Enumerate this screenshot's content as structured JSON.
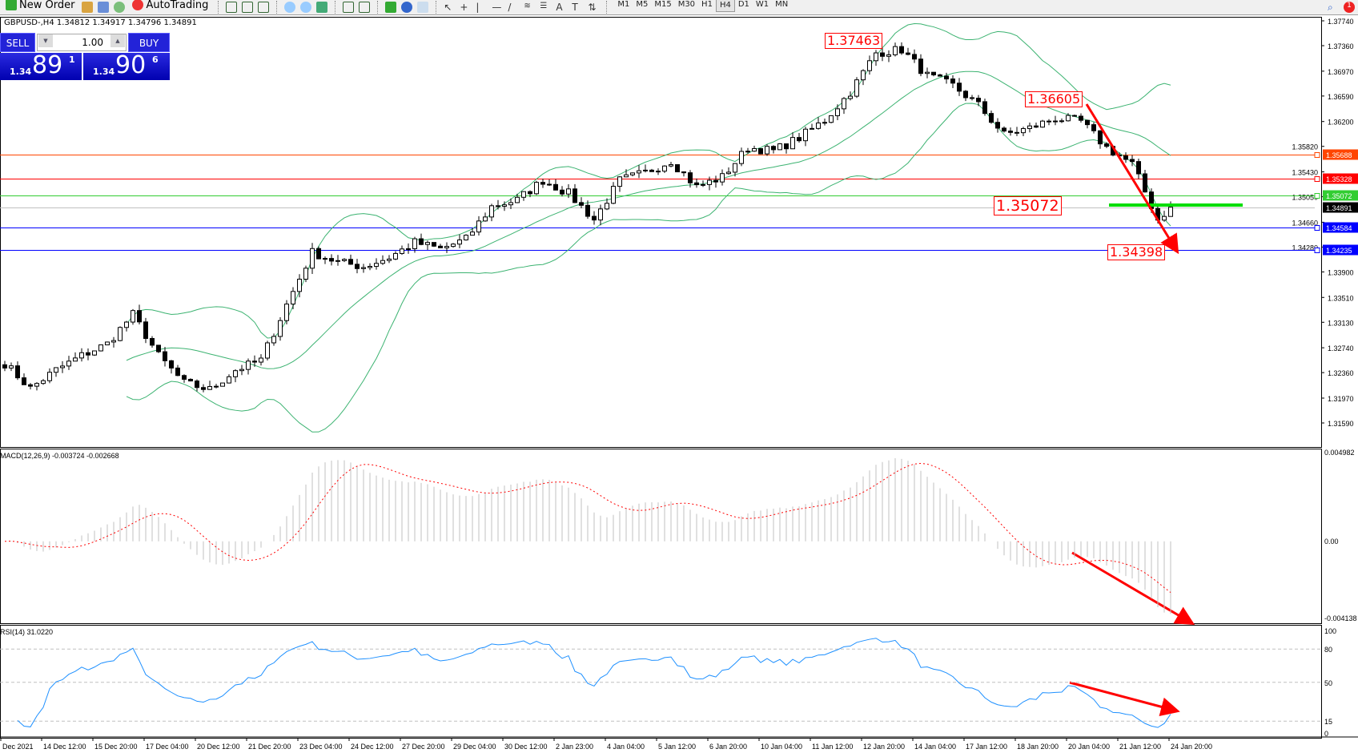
{
  "toolbar": {
    "new_order": "New Order",
    "autotrading": "AutoTrading",
    "timeframes": [
      "M1",
      "M5",
      "M15",
      "M30",
      "H1",
      "H4",
      "D1",
      "W1",
      "MN"
    ],
    "active_timeframe": "H4",
    "notification_count": "1"
  },
  "header": {
    "text": "GBPUSD-,H4  1.34812 1.34917 1.34796 1.34891"
  },
  "trade_panel": {
    "sell": "SELL",
    "buy": "BUY",
    "lot": "1.00",
    "sell_prefix": "1.34",
    "sell_big": "89",
    "sell_sup": "1",
    "buy_prefix": "1.34",
    "buy_big": "90",
    "buy_sup": "6"
  },
  "colors": {
    "bull": "#ffffff",
    "bear": "#000000",
    "bands": "#3cb371",
    "macd_hist": "#c0c0c0",
    "macd_signal": "#ff0000",
    "rsi": "#1e90ff",
    "annotation": "#ff0000"
  },
  "chart_data": {
    "type": "candlestick",
    "symbol": "GBPUSD-",
    "timeframe": "H4",
    "ylim": [
      1.3159,
      1.3774
    ],
    "y_ticks": [
      "1.37740",
      "1.37360",
      "1.36970",
      "1.36590",
      "1.36200",
      "1.35820",
      "1.35430",
      "1.35050",
      "1.34660",
      "1.34280",
      "1.33900",
      "1.33510",
      "1.33130",
      "1.32740",
      "1.32360",
      "1.31970",
      "1.31590"
    ],
    "x_ticks": [
      "Dec 2021",
      "14 Dec 12:00",
      "15 Dec 20:00",
      "17 Dec 04:00",
      "20 Dec 12:00",
      "21 Dec 20:00",
      "23 Dec 04:00",
      "24 Dec 12:00",
      "27 Dec 20:00",
      "29 Dec 04:00",
      "30 Dec 12:00",
      "2 Jan 23:00",
      "4 Jan 04:00",
      "5 Jan 12:00",
      "6 Jan 20:00",
      "10 Jan 04:00",
      "11 Jan 12:00",
      "12 Jan 20:00",
      "14 Jan 04:00",
      "17 Jan 12:00",
      "18 Jan 20:00",
      "20 Jan 04:00",
      "21 Jan 12:00",
      "24 Jan 20:00"
    ],
    "bars_per_tick": 8,
    "close_every_4_bars": [
      1.325,
      1.3212,
      1.324,
      1.3262,
      1.328,
      1.3325,
      1.3262,
      1.322,
      1.321,
      1.324,
      1.3255,
      1.334,
      1.342,
      1.3405,
      1.3398,
      1.3412,
      1.3435,
      1.3425,
      1.344,
      1.349,
      1.35,
      1.353,
      1.351,
      1.347,
      1.353,
      1.3542,
      1.356,
      1.352,
      1.3535,
      1.358,
      1.3575,
      1.3595,
      1.3622,
      1.3665,
      1.3725,
      1.373,
      1.369,
      1.3675,
      1.3645,
      1.36,
      1.361,
      1.3625,
      1.362,
      1.358,
      1.3555,
      1.347,
      1.3489
    ],
    "levels": [
      {
        "price": "1.35688",
        "color": "#ff4500"
      },
      {
        "price": "1.35328",
        "color": "#ff0000"
      },
      {
        "price": "1.35072",
        "color": "#32cd32"
      },
      {
        "price": "1.34891",
        "color": "#000000",
        "line": "#c0c0c0"
      },
      {
        "price": "1.34584",
        "color": "#0000ff"
      },
      {
        "price": "1.34235",
        "color": "#0000ff"
      }
    ],
    "annotations": [
      "1.37463",
      "1.36605",
      "1.35072",
      "1.34398"
    ],
    "bollinger": {
      "period": 20,
      "deviation": 2
    },
    "macd": {
      "label": "MACD(12,26,9) -0.003724 -0.002668",
      "ylim": [
        -0.004138,
        0.004982
      ],
      "ticks": [
        "0.004982",
        "0.00",
        "-0.004138"
      ]
    },
    "rsi": {
      "label": "RSI(14) 31.0220",
      "levels": [
        80,
        50,
        15
      ],
      "ticks": [
        "100",
        "80",
        "50",
        "15",
        "0"
      ]
    }
  }
}
